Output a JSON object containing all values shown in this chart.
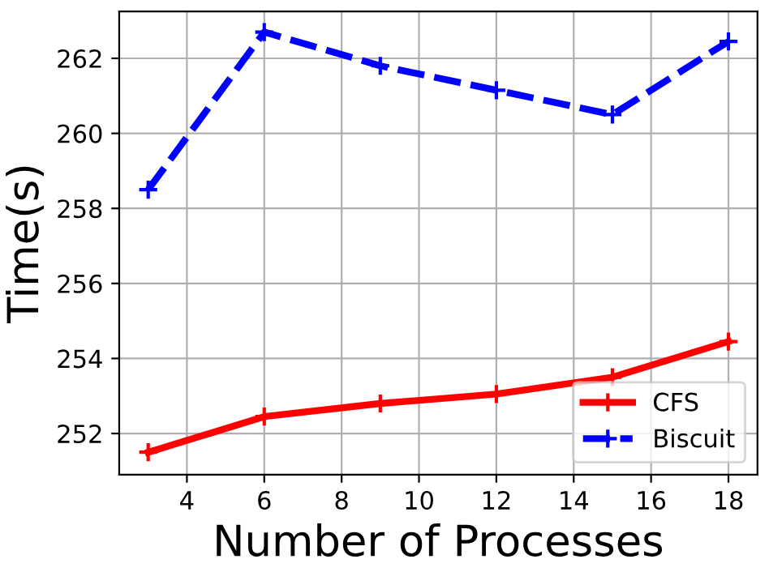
{
  "chart_data": {
    "type": "line",
    "xlabel": "Number of Processes",
    "ylabel": "Time(s)",
    "x": [
      3,
      6,
      9,
      12,
      15,
      18
    ],
    "series": [
      {
        "name": "CFS",
        "color": "#ff0000",
        "values": [
          251.5,
          252.45,
          252.8,
          253.05,
          253.5,
          254.45
        ],
        "line_style": "solid"
      },
      {
        "name": "Biscuit",
        "color": "#0000ff",
        "values": [
          258.5,
          262.7,
          261.8,
          261.15,
          260.5,
          262.45
        ],
        "line_style": "dashed"
      }
    ],
    "xlim": [
      2.25,
      18.75
    ],
    "xticks": [
      4,
      6,
      8,
      10,
      12,
      14,
      16,
      18
    ],
    "ylim": [
      250.9,
      263.25
    ],
    "yticks": [
      252,
      254,
      256,
      258,
      260,
      262
    ],
    "grid": true,
    "legend": "lower right",
    "marker": "cross"
  }
}
